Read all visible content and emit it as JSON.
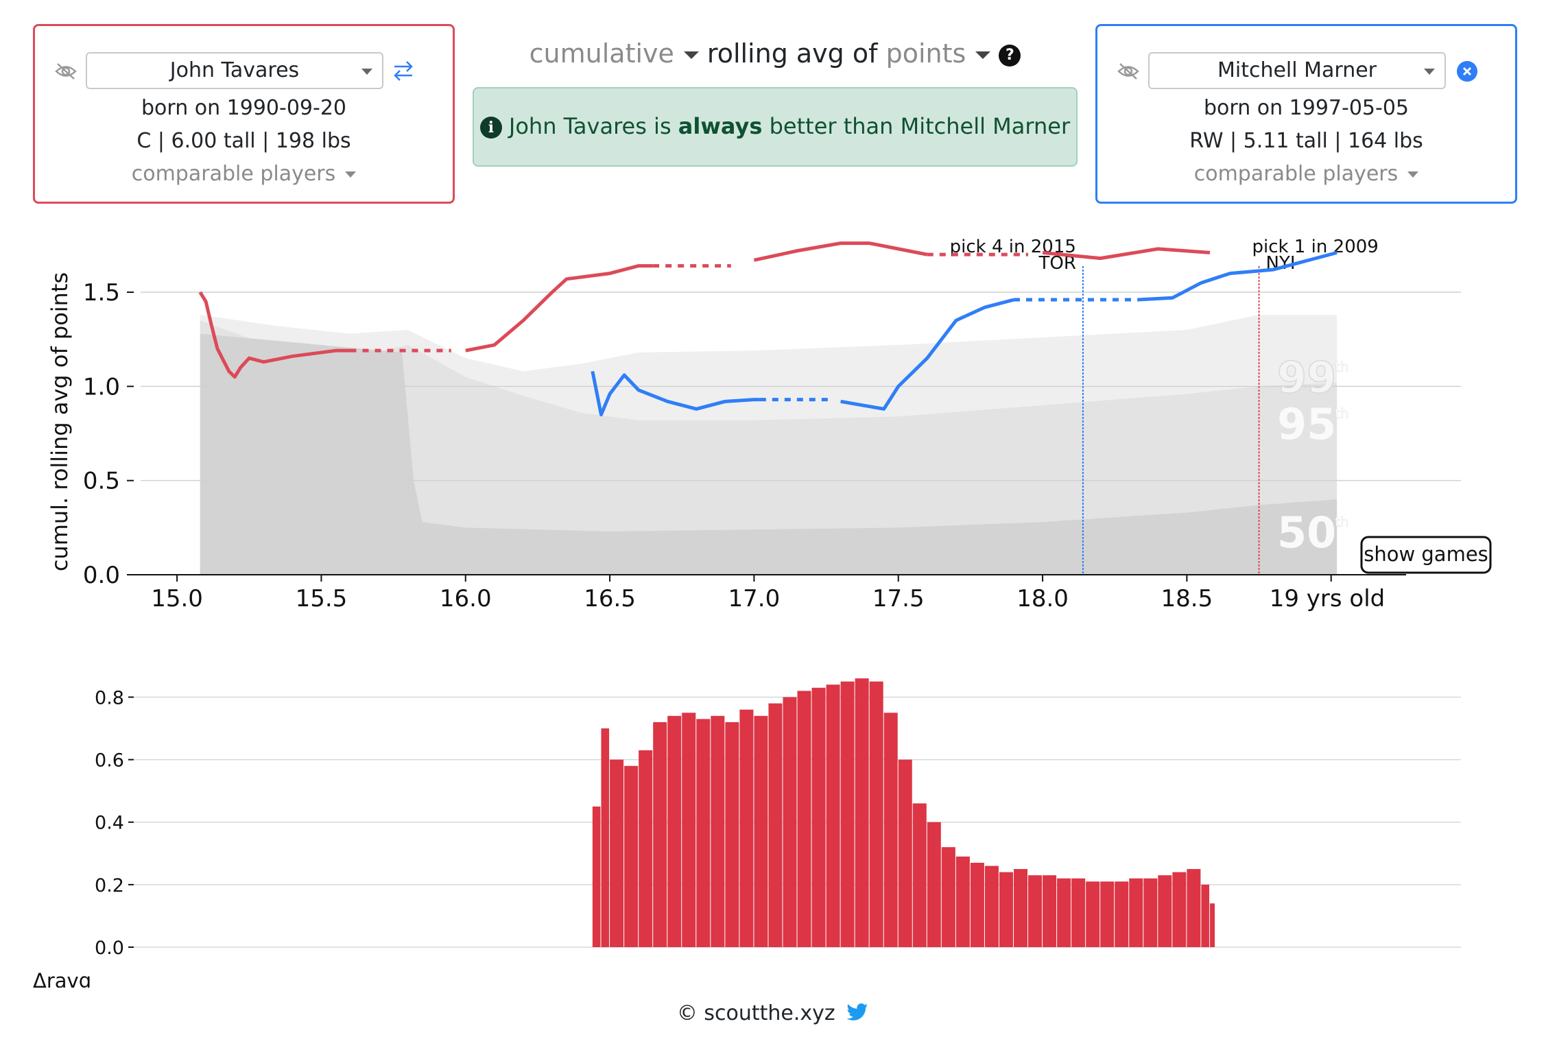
{
  "left_player": {
    "name": "John Tavares",
    "born": "born on 1990-09-20",
    "info": "C | 6.00 tall | 198 lbs",
    "comparable": "comparable players",
    "color": "#dc4a58"
  },
  "right_player": {
    "name": "Mitchell Marner",
    "born": "born on 1997-05-05",
    "info": "RW | 5.11 tall | 164 lbs",
    "comparable": "comparable players",
    "color": "#2f7ef7"
  },
  "metric": {
    "mode": "cumulative",
    "middle": "rolling avg of",
    "stat": "points",
    "help": "?"
  },
  "verdict": {
    "icon": "i",
    "prefix": "John Tavares is ",
    "emphasis": "always",
    "suffix": " better than Mitchell Marner"
  },
  "show_games_label": "show games",
  "footer": {
    "text": "© scoutthe.xyz",
    "icon": "twitter-bird-icon"
  },
  "chart_data": [
    {
      "type": "line",
      "ylabel": "cumul. rolling avg of points",
      "x_ticks": [
        "15.0",
        "15.5",
        "16.0",
        "16.5",
        "17.0",
        "17.5",
        "18.0",
        "18.5",
        "19 yrs old"
      ],
      "x_tick_values": [
        15.0,
        15.5,
        16.0,
        16.5,
        17.0,
        17.5,
        18.0,
        18.5,
        19.0
      ],
      "y_ticks": [
        "0.0",
        "0.5",
        "1.0",
        "1.5"
      ],
      "y_tick_values": [
        0.0,
        0.5,
        1.0,
        1.5
      ],
      "xlim": [
        14.85,
        19.45
      ],
      "ylim": [
        0.0,
        2.05
      ],
      "grid": true,
      "percentile_bands": [
        {
          "label": "99",
          "suffix": "th",
          "color": "#efefef",
          "x": [
            15.08,
            15.35,
            15.6,
            15.8,
            16.0,
            16.2,
            16.4,
            16.6,
            17.0,
            17.5,
            18.0,
            18.5,
            18.75,
            19.02
          ],
          "y": [
            1.38,
            1.32,
            1.28,
            1.3,
            1.15,
            1.08,
            1.12,
            1.18,
            1.19,
            1.22,
            1.26,
            1.3,
            1.38,
            1.38
          ]
        },
        {
          "label": "95",
          "suffix": "th",
          "color": "#e3e3e3",
          "x": [
            15.08,
            15.35,
            15.6,
            15.8,
            16.0,
            16.2,
            16.4,
            16.6,
            17.0,
            17.5,
            18.0,
            18.5,
            18.75,
            19.02
          ],
          "y": [
            1.35,
            1.2,
            1.15,
            1.22,
            1.05,
            0.95,
            0.86,
            0.82,
            0.82,
            0.84,
            0.9,
            0.96,
            1.0,
            1.02
          ]
        },
        {
          "label": "50",
          "suffix": "th",
          "color": "#d3d3d3",
          "x": [
            15.08,
            15.5,
            15.78,
            15.82,
            15.85,
            16.0,
            16.5,
            17.0,
            17.5,
            18.0,
            18.5,
            18.75,
            19.02
          ],
          "y": [
            1.28,
            1.22,
            1.18,
            0.5,
            0.28,
            0.25,
            0.23,
            0.24,
            0.25,
            0.28,
            0.33,
            0.37,
            0.4
          ]
        }
      ],
      "annotations": [
        {
          "x": 18.14,
          "line1": "pick 4 in 2015",
          "line2": "TOR",
          "color": "#2f7ef7"
        },
        {
          "x": 18.75,
          "line1": "pick 1 in 2009",
          "line2": "NYI",
          "color": "#dc4a58"
        }
      ],
      "series": [
        {
          "color": "#dc4a58",
          "segments": [
            {
              "dashed": false,
              "x": [
                15.08,
                15.1,
                15.12,
                15.14,
                15.18,
                15.2,
                15.22,
                15.25,
                15.3,
                15.4,
                15.5,
                15.55,
                15.6
              ],
              "y": [
                1.5,
                1.45,
                1.32,
                1.2,
                1.08,
                1.05,
                1.1,
                1.15,
                1.13,
                1.16,
                1.18,
                1.19,
                1.19
              ]
            },
            {
              "dashed": true,
              "x": [
                15.6,
                15.95
              ],
              "y": [
                1.19,
                1.19
              ]
            },
            {
              "dashed": false,
              "x": [
                16.0,
                16.1,
                16.2,
                16.3,
                16.35,
                16.5,
                16.6,
                16.65
              ],
              "y": [
                1.19,
                1.22,
                1.35,
                1.5,
                1.57,
                1.6,
                1.64,
                1.64
              ]
            },
            {
              "dashed": true,
              "x": [
                16.65,
                16.92
              ],
              "y": [
                1.64,
                1.64
              ]
            },
            {
              "dashed": false,
              "x": [
                17.0,
                17.15,
                17.3,
                17.4,
                17.5,
                17.6
              ],
              "y": [
                1.67,
                1.72,
                1.76,
                1.76,
                1.73,
                1.7
              ]
            },
            {
              "dashed": true,
              "x": [
                17.6,
                17.95
              ],
              "y": [
                1.7,
                1.7
              ]
            },
            {
              "dashed": false,
              "x": [
                18.0,
                18.2,
                18.4,
                18.58
              ],
              "y": [
                1.71,
                1.68,
                1.73,
                1.71
              ]
            }
          ]
        },
        {
          "color": "#2f7ef7",
          "segments": [
            {
              "dashed": false,
              "x": [
                16.44,
                16.47,
                16.5,
                16.55,
                16.6,
                16.7,
                16.8,
                16.9,
                17.0,
                17.02
              ],
              "y": [
                1.08,
                0.85,
                0.96,
                1.06,
                0.98,
                0.92,
                0.88,
                0.92,
                0.93,
                0.93
              ]
            },
            {
              "dashed": true,
              "x": [
                17.02,
                17.26
              ],
              "y": [
                0.93,
                0.93
              ]
            },
            {
              "dashed": false,
              "x": [
                17.3,
                17.45,
                17.5,
                17.6,
                17.7,
                17.8,
                17.9
              ],
              "y": [
                0.92,
                0.88,
                1.0,
                1.15,
                1.35,
                1.42,
                1.46
              ]
            },
            {
              "dashed": true,
              "x": [
                17.9,
                18.33
              ],
              "y": [
                1.46,
                1.46
              ]
            },
            {
              "dashed": false,
              "x": [
                18.33,
                18.45,
                18.55,
                18.65,
                18.8,
                19.02
              ],
              "y": [
                1.46,
                1.47,
                1.55,
                1.6,
                1.62,
                1.71
              ]
            }
          ]
        }
      ]
    },
    {
      "type": "bar",
      "ylabel": "Δravg",
      "y_ticks": [
        "0.0",
        "0.2",
        "0.4",
        "0.6",
        "0.8"
      ],
      "y_tick_values": [
        0.0,
        0.2,
        0.4,
        0.6,
        0.8
      ],
      "ylim": [
        0.0,
        0.88
      ],
      "xlim": [
        14.85,
        19.45
      ],
      "color": "#dc3545",
      "x": [
        16.44,
        16.47,
        16.5,
        16.55,
        16.6,
        16.65,
        16.7,
        16.75,
        16.8,
        16.85,
        16.9,
        16.95,
        17.0,
        17.05,
        17.1,
        17.15,
        17.2,
        17.25,
        17.3,
        17.35,
        17.4,
        17.45,
        17.5,
        17.55,
        17.6,
        17.65,
        17.7,
        17.75,
        17.8,
        17.85,
        17.9,
        17.95,
        18.0,
        18.05,
        18.1,
        18.15,
        18.2,
        18.25,
        18.3,
        18.35,
        18.4,
        18.45,
        18.5,
        18.55,
        18.58
      ],
      "values": [
        0.45,
        0.7,
        0.6,
        0.58,
        0.63,
        0.72,
        0.74,
        0.75,
        0.73,
        0.74,
        0.72,
        0.76,
        0.74,
        0.78,
        0.8,
        0.82,
        0.83,
        0.84,
        0.85,
        0.86,
        0.85,
        0.75,
        0.6,
        0.46,
        0.4,
        0.32,
        0.29,
        0.27,
        0.26,
        0.24,
        0.25,
        0.23,
        0.23,
        0.22,
        0.22,
        0.21,
        0.21,
        0.21,
        0.22,
        0.22,
        0.23,
        0.24,
        0.25,
        0.2,
        0.14
      ]
    }
  ]
}
